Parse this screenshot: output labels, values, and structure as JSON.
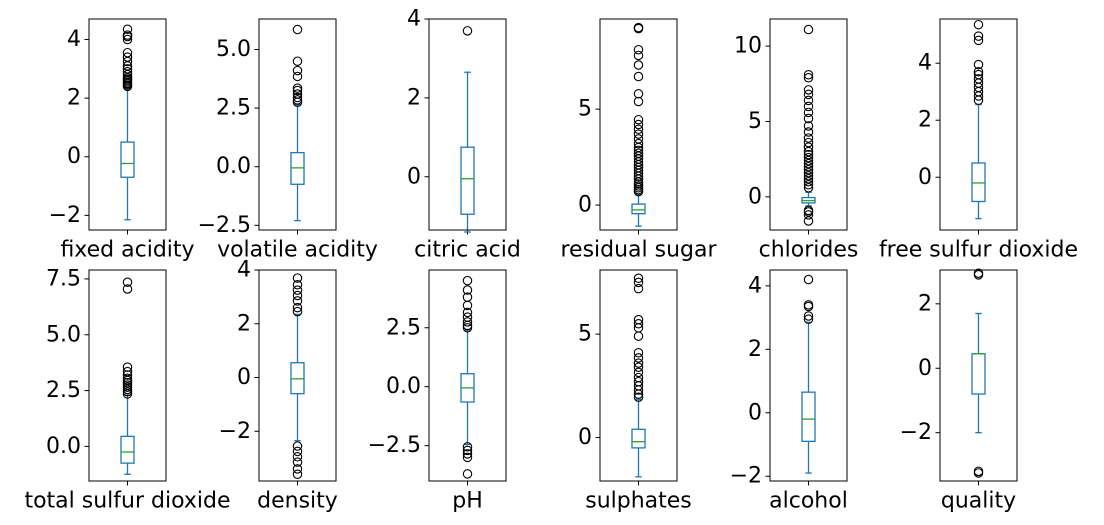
{
  "chart_data": [
    {
      "type": "box",
      "xlabel": "fixed acidity",
      "ylim": [
        -2.5,
        4.7
      ],
      "yticks": [
        -2,
        0,
        2,
        4
      ],
      "yticklabels": [
        "−2",
        "0",
        "2",
        "4"
      ],
      "box": {
        "whislo": -2.15,
        "q1": -0.7,
        "med": -0.23,
        "q3": 0.5,
        "whishi": 2.35
      },
      "outliers": [
        2.4,
        2.45,
        2.5,
        2.55,
        2.6,
        2.65,
        2.7,
        2.8,
        2.9,
        3.0,
        3.1,
        3.25,
        3.4,
        3.55,
        4.0,
        4.1,
        4.15,
        4.35
      ]
    },
    {
      "type": "box",
      "xlabel": "volatile acidity",
      "ylim": [
        -2.7,
        6.3
      ],
      "yticks": [
        -2.5,
        0.0,
        2.5,
        5.0
      ],
      "yticklabels": [
        "−2.5",
        "0.0",
        "2.5",
        "5.0"
      ],
      "box": {
        "whislo": -2.3,
        "q1": -0.75,
        "med": -0.05,
        "q3": 0.6,
        "whishi": 2.65
      },
      "outliers": [
        2.75,
        2.85,
        2.95,
        3.1,
        3.25,
        3.35,
        3.85,
        4.1,
        4.5,
        5.85
      ]
    },
    {
      "type": "box",
      "xlabel": "citric acid",
      "ylim": [
        -1.35,
        4.0
      ],
      "yticks": [
        0,
        2,
        4
      ],
      "yticklabels": [
        "0",
        "2",
        "4"
      ],
      "box": {
        "whislo": -1.4,
        "q1": -0.95,
        "med": -0.05,
        "q3": 0.75,
        "whishi": 2.65
      },
      "outliers": [
        3.7
      ]
    },
    {
      "type": "box",
      "xlabel": "residual sugar",
      "ylim": [
        -1.3,
        9.7
      ],
      "yticks": [
        0,
        5
      ],
      "yticklabels": [
        "0",
        "5"
      ],
      "box": {
        "whislo": -1.1,
        "q1": -0.45,
        "med": -0.25,
        "q3": 0.05,
        "whishi": 0.55
      },
      "outliers": [
        0.7,
        0.8,
        0.9,
        1.0,
        1.1,
        1.2,
        1.35,
        1.5,
        1.65,
        1.8,
        1.95,
        2.1,
        2.25,
        2.4,
        2.55,
        2.7,
        2.85,
        3.0,
        3.2,
        3.45,
        3.7,
        3.95,
        4.2,
        4.45,
        5.4,
        5.8,
        6.7,
        7.3,
        7.8,
        8.1,
        9.2,
        9.25
      ]
    },
    {
      "type": "box",
      "xlabel": "chlorides",
      "ylim": [
        -2.2,
        11.8
      ],
      "yticks": [
        0,
        5,
        10
      ],
      "yticklabels": [
        "0",
        "5",
        "10"
      ],
      "box": {
        "whislo": -0.6,
        "q1": -0.4,
        "med": -0.25,
        "q3": -0.05,
        "whishi": 0.3
      },
      "outliers": [
        -1.6,
        -1.2,
        -1.0,
        -0.9,
        0.6,
        0.8,
        1.0,
        1.2,
        1.4,
        1.6,
        1.8,
        2.0,
        2.2,
        2.4,
        2.6,
        2.8,
        3.0,
        3.3,
        3.6,
        3.9,
        4.3,
        4.7,
        5.2,
        5.6,
        6.0,
        6.4,
        6.8,
        7.1,
        7.9,
        8.1,
        11.1
      ]
    },
    {
      "type": "box",
      "xlabel": "free sulfur dioxide",
      "ylim": [
        -1.85,
        5.55
      ],
      "yticks": [
        0,
        2,
        4
      ],
      "yticklabels": [
        "0",
        "2",
        "4"
      ],
      "box": {
        "whislo": -1.45,
        "q1": -0.85,
        "med": -0.2,
        "q3": 0.5,
        "whishi": 2.55
      },
      "outliers": [
        2.7,
        2.85,
        3.0,
        3.15,
        3.3,
        3.45,
        3.6,
        3.7,
        3.95,
        4.8,
        4.95,
        5.35
      ]
    },
    {
      "type": "box",
      "xlabel": "total sulfur dioxide",
      "ylim": [
        -1.55,
        7.9
      ],
      "yticks": [
        0.0,
        2.5,
        5.0,
        7.5
      ],
      "yticklabels": [
        "0.0",
        "2.5",
        "5.0",
        "7.5"
      ],
      "box": {
        "whislo": -1.25,
        "q1": -0.75,
        "med": -0.25,
        "q3": 0.45,
        "whishi": 2.3
      },
      "outliers": [
        2.35,
        2.45,
        2.55,
        2.65,
        2.75,
        2.85,
        2.95,
        3.05,
        3.2,
        3.35,
        3.55,
        7.05,
        7.35
      ]
    },
    {
      "type": "box",
      "xlabel": "density",
      "ylim": [
        -3.85,
        4.0
      ],
      "yticks": [
        -2,
        0,
        2,
        4
      ],
      "yticklabels": [
        "−2",
        "0",
        "2",
        "4"
      ],
      "box": {
        "whislo": -2.35,
        "q1": -0.6,
        "med": -0.05,
        "q3": 0.55,
        "whishi": 2.35
      },
      "outliers": [
        -3.6,
        -3.4,
        -3.15,
        -2.95,
        -2.75,
        -2.55,
        2.45,
        2.6,
        2.85,
        3.05,
        3.25,
        3.45,
        3.7
      ]
    },
    {
      "type": "box",
      "xlabel": "pH",
      "ylim": [
        -4.0,
        4.95
      ],
      "yticks": [
        -2.5,
        0.0,
        2.5
      ],
      "yticklabels": [
        "−2.5",
        "0.0",
        "2.5"
      ],
      "box": {
        "whislo": -2.45,
        "q1": -0.65,
        "med": -0.05,
        "q3": 0.55,
        "whishi": 2.4
      },
      "outliers": [
        -3.7,
        -3.0,
        -2.85,
        -2.7,
        -2.55,
        2.5,
        2.6,
        2.75,
        2.95,
        3.15,
        3.45,
        3.8,
        4.1,
        4.5
      ]
    },
    {
      "type": "box",
      "xlabel": "sulphates",
      "ylim": [
        -2.1,
        8.1
      ],
      "yticks": [
        0,
        5
      ],
      "yticklabels": [
        "0",
        "5"
      ],
      "box": {
        "whislo": -1.9,
        "q1": -0.5,
        "med": -0.2,
        "q3": 0.4,
        "whishi": 1.85
      },
      "outliers": [
        1.95,
        2.1,
        2.3,
        2.5,
        2.7,
        2.9,
        3.15,
        3.4,
        3.6,
        3.85,
        4.1,
        4.9,
        5.3,
        5.5,
        5.7,
        7.2,
        7.5,
        7.7
      ]
    },
    {
      "type": "box",
      "xlabel": "alcohol",
      "ylim": [
        -2.15,
        4.5
      ],
      "yticks": [
        -2,
        0,
        2,
        4
      ],
      "yticklabels": [
        "−2",
        "0",
        "2",
        "4"
      ],
      "box": {
        "whislo": -1.9,
        "q1": -0.9,
        "med": -0.2,
        "q3": 0.65,
        "whishi": 2.85
      },
      "outliers": [
        2.95,
        3.05,
        3.35,
        3.4,
        4.2
      ]
    },
    {
      "type": "box",
      "xlabel": "quality",
      "ylim": [
        -3.5,
        3.05
      ],
      "yticks": [
        -2,
        0,
        2
      ],
      "yticklabels": [
        "−2",
        "0",
        "2"
      ],
      "box": {
        "whislo": -2.0,
        "q1": -0.8,
        "med": 0.45,
        "q3": 0.45,
        "whishi": 1.7
      },
      "outliers": [
        -3.25,
        -3.2,
        2.9,
        2.95
      ]
    }
  ],
  "colors": {
    "box": "#1f77b4",
    "median": "#2ca02c",
    "flier": "#000000",
    "axis": "#000000"
  }
}
